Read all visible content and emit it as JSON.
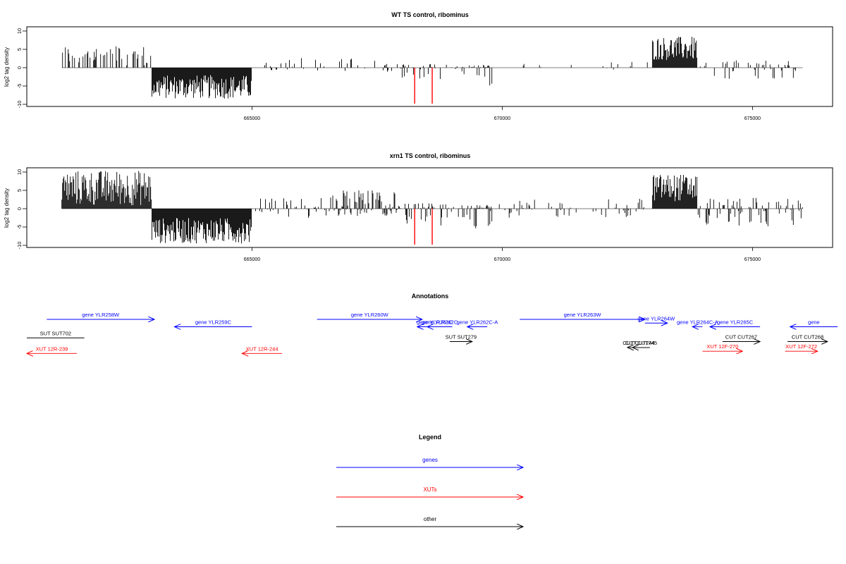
{
  "colors": {
    "genes": "#0000ff",
    "xuts": "#ff0000",
    "other": "#000000",
    "highlight": "#ff0000",
    "bars": "#000000"
  },
  "chart_data": [
    {
      "type": "bar",
      "title": "WT TS control, ribominus",
      "ylabel": "log2 tag density",
      "ylim": [
        -10,
        11
      ],
      "xlim": [
        660500,
        676600
      ],
      "yticks": [
        10,
        5,
        0,
        -5,
        -10
      ],
      "yticklabels": [
        "10",
        "5",
        "0",
        "-5",
        "-10"
      ],
      "xticks": [
        665000,
        670000,
        675000
      ],
      "xticklabels": [
        "665000",
        "670000",
        "675000"
      ],
      "segments": [
        {
          "x": [
            661200,
            663000
          ],
          "y": [
            0.6,
            6.2
          ],
          "density": 0.35
        },
        {
          "x": [
            663000,
            665000
          ],
          "y": [
            -8.5,
            -2.0
          ],
          "density": 1.0
        },
        {
          "x": [
            665000,
            667900
          ],
          "y": [
            -1.5,
            2.6
          ],
          "density": 0.2
        },
        {
          "x": [
            667900,
            668800
          ],
          "y": [
            -4.0,
            1.0
          ],
          "density": 0.3
        },
        {
          "x": [
            668800,
            669300
          ],
          "y": [
            -2.0,
            1.0
          ],
          "density": 0.15
        },
        {
          "x": [
            669300,
            669800
          ],
          "y": [
            -5.3,
            0.8
          ],
          "density": 0.6
        },
        {
          "x": [
            669800,
            673000
          ],
          "y": [
            -1.2,
            1.6
          ],
          "density": 0.06
        },
        {
          "x": [
            673000,
            673900
          ],
          "y": [
            2.0,
            8.5
          ],
          "density": 1.0
        },
        {
          "x": [
            673900,
            675900
          ],
          "y": [
            -3.2,
            2.0
          ],
          "density": 0.3
        }
      ],
      "highlights": [
        {
          "x": 668250,
          "y": -9.8
        },
        {
          "x": 668600,
          "y": -9.8
        }
      ]
    },
    {
      "type": "bar",
      "title": "xrn1 TS control, ribominus",
      "ylabel": "log2 tag density",
      "ylim": [
        -10,
        11
      ],
      "xlim": [
        660500,
        676600
      ],
      "yticks": [
        10,
        5,
        0,
        -5,
        -10
      ],
      "yticklabels": [
        "10",
        "5",
        "0",
        "-5",
        "-10"
      ],
      "xticks": [
        665000,
        670000,
        675000
      ],
      "xticklabels": [
        "665000",
        "670000",
        "675000"
      ],
      "segments": [
        {
          "x": [
            661200,
            663000
          ],
          "y": [
            0.8,
            10.5
          ],
          "density": 1.0
        },
        {
          "x": [
            663000,
            665000
          ],
          "y": [
            -9.5,
            -2.5
          ],
          "density": 1.0
        },
        {
          "x": [
            665000,
            666500
          ],
          "y": [
            -3.0,
            3.0
          ],
          "density": 0.3
        },
        {
          "x": [
            666500,
            667900
          ],
          "y": [
            -2.0,
            5.0
          ],
          "density": 0.7
        },
        {
          "x": [
            667900,
            668800
          ],
          "y": [
            -5.0,
            1.5
          ],
          "density": 0.5
        },
        {
          "x": [
            668800,
            669300
          ],
          "y": [
            -2.5,
            1.5
          ],
          "density": 0.3
        },
        {
          "x": [
            669300,
            669800
          ],
          "y": [
            -5.5,
            1.0
          ],
          "density": 0.7
        },
        {
          "x": [
            669800,
            673000
          ],
          "y": [
            -2.5,
            3.0
          ],
          "density": 0.2
        },
        {
          "x": [
            673000,
            673900
          ],
          "y": [
            2.0,
            9.5
          ],
          "density": 1.0
        },
        {
          "x": [
            673900,
            676000
          ],
          "y": [
            -4.8,
            3.0
          ],
          "density": 0.5
        }
      ],
      "highlights": [
        {
          "x": 668250,
          "y": -9.8
        },
        {
          "x": 668600,
          "y": -9.8
        }
      ]
    }
  ],
  "annotations": {
    "title": "Annotations",
    "features": [
      {
        "label": "gene YLR258W",
        "kind": "gene",
        "start": 660900,
        "end": 663050,
        "dir": "+",
        "row": 0
      },
      {
        "label": "gene YLR259C",
        "kind": "gene",
        "start": 663450,
        "end": 665000,
        "dir": "-",
        "row": 1
      },
      {
        "label": "gene YLR260W",
        "kind": "gene",
        "start": 666300,
        "end": 668400,
        "dir": "+",
        "row": 0
      },
      {
        "label": "gene YLR261C",
        "kind": "gene",
        "start": 668300,
        "end": 669000,
        "dir": "-",
        "row": 1
      },
      {
        "label": "gene YLR262C",
        "kind": "gene",
        "start": 668500,
        "end": 669000,
        "dir": "-",
        "row": 1
      },
      {
        "label": "gene YLR262C-A",
        "kind": "gene",
        "start": 669300,
        "end": 669700,
        "dir": "-",
        "row": 1
      },
      {
        "label": "gene YLR263W",
        "kind": "gene",
        "start": 670350,
        "end": 672850,
        "dir": "+",
        "row": 0
      },
      {
        "label": "gene YLR264W",
        "kind": "gene",
        "start": 672850,
        "end": 673300,
        "dir": "+",
        "row": 0.5
      },
      {
        "label": "gene YLR264C-A",
        "kind": "gene",
        "start": 673800,
        "end": 674000,
        "dir": "-",
        "row": 1
      },
      {
        "label": "gene YLR265C",
        "kind": "gene",
        "start": 674150,
        "end": 675150,
        "dir": "-",
        "row": 1
      },
      {
        "label": "gene",
        "kind": "gene",
        "start": 675750,
        "end": 676700,
        "dir": "-",
        "row": 1
      },
      {
        "label": "SUT SUT702",
        "kind": "other",
        "start": 660500,
        "end": 661650,
        "dir": ".",
        "row": 2.5
      },
      {
        "label": "SUT SUT279",
        "kind": "other",
        "start": 668950,
        "end": 669400,
        "dir": "+",
        "row": 3
      },
      {
        "label": "CUT CUT244",
        "kind": "other",
        "start": 672500,
        "end": 672950,
        "dir": "-",
        "row": 3.8
      },
      {
        "label": "CUT CUT745",
        "kind": "other",
        "start": 672600,
        "end": 672950,
        "dir": "-",
        "row": 3.8
      },
      {
        "label": "CUT CUT267",
        "kind": "other",
        "start": 674400,
        "end": 675150,
        "dir": "+",
        "row": 3
      },
      {
        "label": "CUT CUT268",
        "kind": "other",
        "start": 675700,
        "end": 676500,
        "dir": "+",
        "row": 3
      },
      {
        "label": "XUT 12R-239",
        "kind": "xut",
        "start": 660500,
        "end": 661500,
        "dir": "-",
        "row": 4.6
      },
      {
        "label": "XUT 12R-244",
        "kind": "xut",
        "start": 664800,
        "end": 665600,
        "dir": "-",
        "row": 4.6
      },
      {
        "label": "XUT 12F-270",
        "kind": "xut",
        "start": 674000,
        "end": 674800,
        "dir": "+",
        "row": 4.3
      },
      {
        "label": "XUT 12F-272",
        "kind": "xut",
        "start": 675650,
        "end": 676300,
        "dir": "+",
        "row": 4.3
      }
    ]
  },
  "legend": {
    "title": "Legend",
    "items": [
      {
        "label": "genes",
        "kind": "gene"
      },
      {
        "label": "XUTs",
        "kind": "xut"
      },
      {
        "label": "other",
        "kind": "other"
      }
    ]
  }
}
